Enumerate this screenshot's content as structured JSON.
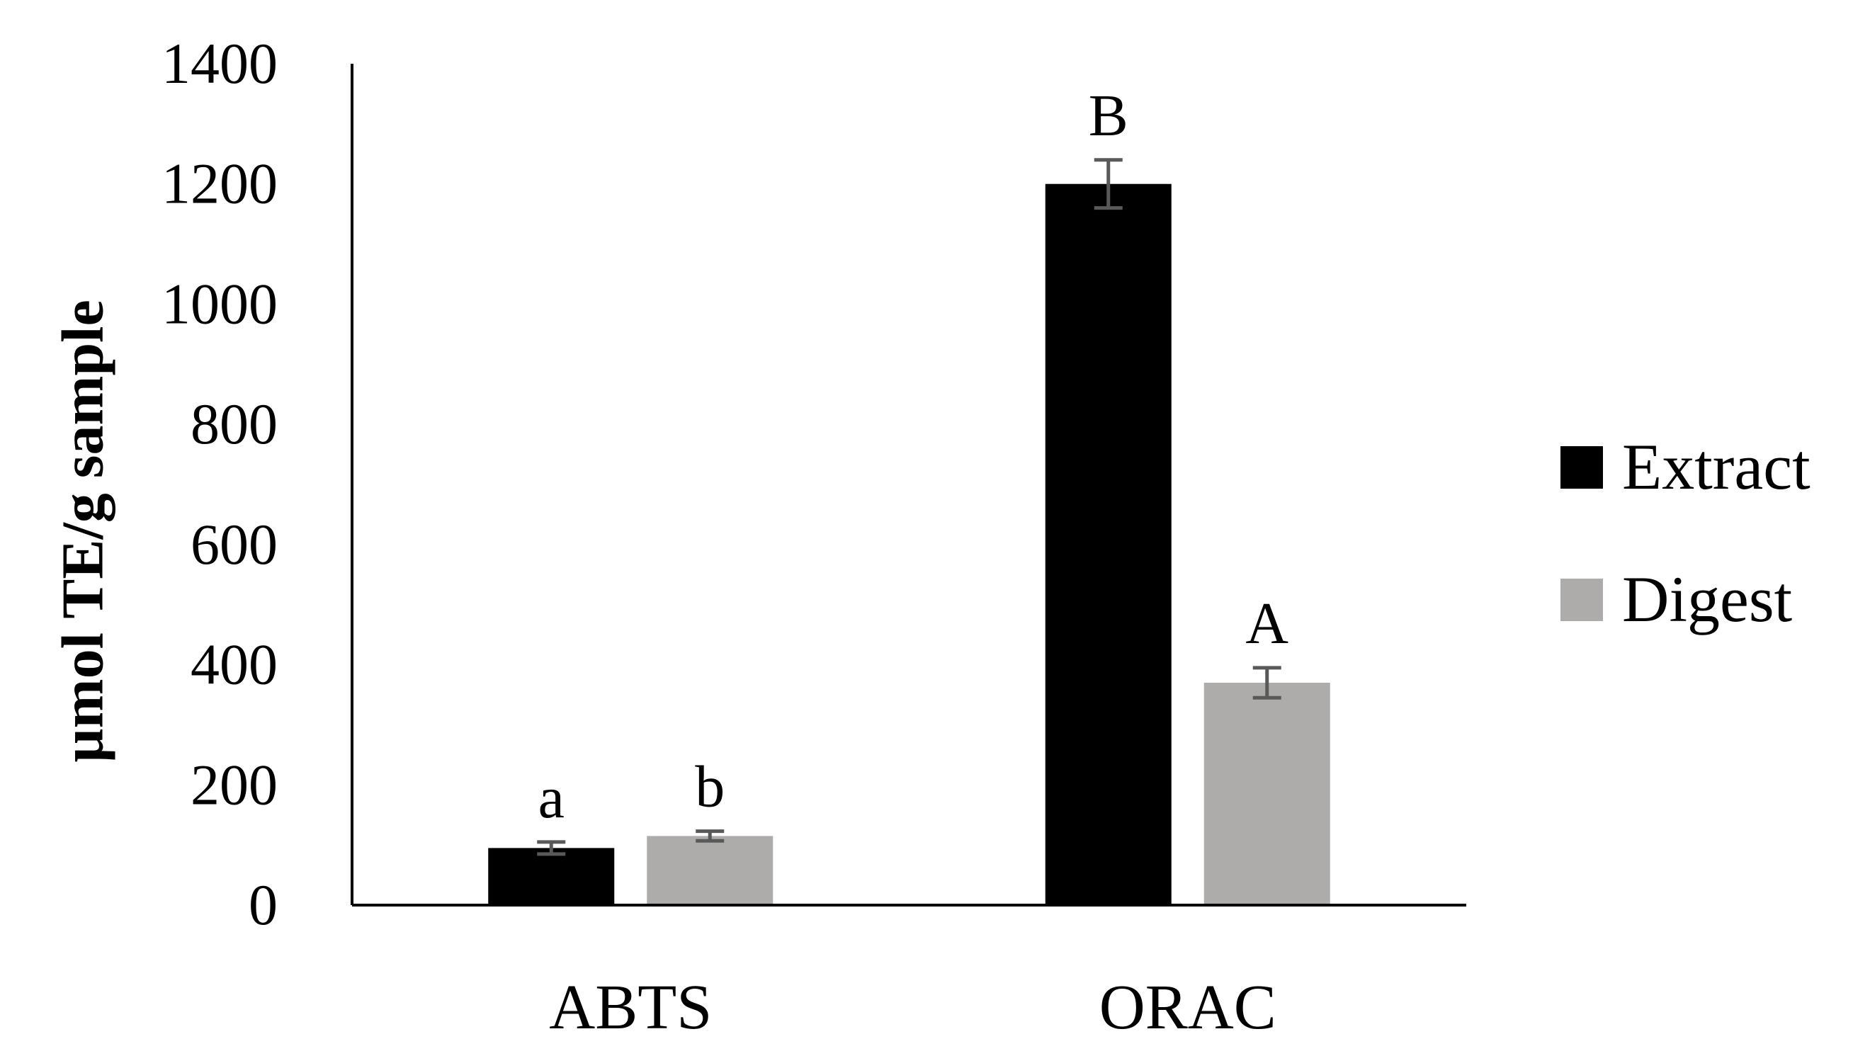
{
  "chart_data": {
    "type": "bar",
    "title": "",
    "xlabel": "",
    "ylabel": "µmol TE/g sample",
    "ylim": [
      0,
      1400
    ],
    "yticks": [
      0,
      200,
      400,
      600,
      800,
      1000,
      1200,
      1400
    ],
    "grid": false,
    "legend_position": "right",
    "categories": [
      "ABTS",
      "ORAC"
    ],
    "series": [
      {
        "name": "Extract",
        "color": "#000000",
        "values": [
          95,
          1200
        ],
        "errors": [
          10,
          40
        ],
        "labels": [
          "a",
          "B"
        ]
      },
      {
        "name": "Digest",
        "color": "#aeacab",
        "values": [
          115,
          370
        ],
        "errors": [
          8,
          25
        ],
        "labels": [
          "b",
          "A"
        ]
      }
    ],
    "error_bar_color": "#595959"
  }
}
